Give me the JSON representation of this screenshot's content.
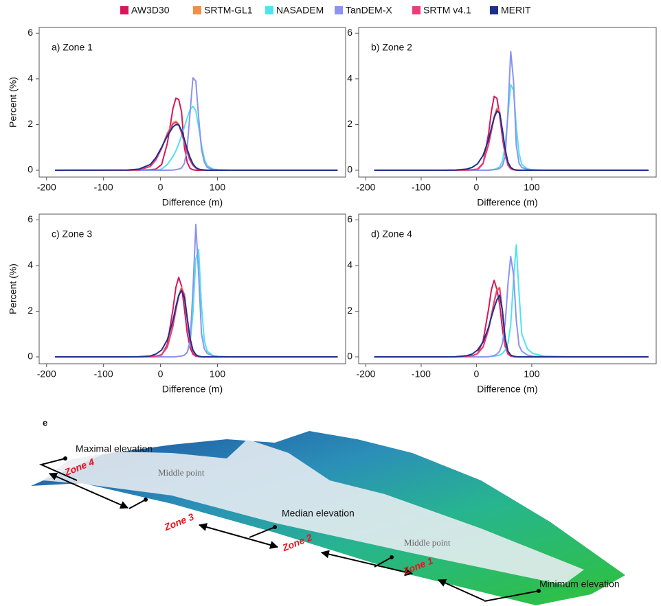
{
  "chart_data": [
    {
      "type": "line",
      "title": "a) Zone 1",
      "x_label": "Difference (m)",
      "y_label": "Percent (%)",
      "xlim": [
        -213,
        325
      ],
      "ylim": [
        -0.3,
        6.25
      ],
      "xticks": [
        -200,
        -100,
        0,
        100
      ],
      "yticks": [
        0,
        2,
        4,
        6
      ],
      "x": [
        -185,
        -58,
        -38,
        -18,
        -8,
        2,
        12,
        22,
        27,
        32,
        37,
        42,
        47,
        52,
        57,
        62,
        67,
        72,
        77,
        82,
        92,
        102,
        122,
        162,
        311
      ],
      "series": [
        {
          "name": "AW3D30",
          "color": "#d6175c",
          "values": [
            0,
            0,
            0.01,
            0.02,
            0.05,
            0.25,
            1.17,
            2.71,
            3.15,
            3.1,
            2.56,
            1.0,
            0.34,
            0.08,
            0.02,
            0,
            0,
            0,
            0,
            0,
            0,
            0,
            0,
            0,
            0
          ]
        },
        {
          "name": "SRTM-GL1",
          "color": "#f0904a",
          "values": [
            0,
            0,
            0.01,
            0.17,
            0.47,
            0.98,
            1.62,
            2.08,
            2.15,
            2.02,
            1.66,
            1.21,
            0.78,
            0.43,
            0.22,
            0.1,
            0.04,
            0.02,
            0.01,
            0,
            0,
            0,
            0,
            0,
            0
          ]
        },
        {
          "name": "NASADEM",
          "color": "#4fe3ee",
          "values": [
            0,
            0,
            0,
            0,
            0,
            0.05,
            0.25,
            0.6,
            0.85,
            1.15,
            1.5,
            1.9,
            2.3,
            2.65,
            2.8,
            2.6,
            1.9,
            1.1,
            0.5,
            0.2,
            0.05,
            0.02,
            0,
            0,
            0
          ]
        },
        {
          "name": "TanDEM-X",
          "color": "#8a93f0",
          "values": [
            0,
            0,
            0,
            0,
            0,
            0,
            0,
            0.01,
            0.02,
            0.05,
            0.1,
            0.3,
            1.0,
            2.55,
            4.05,
            3.9,
            2.3,
            0.9,
            0.35,
            0.12,
            0.03,
            0.01,
            0,
            0,
            0
          ]
        },
        {
          "name": "SRTM v4.1",
          "color": "#ea3e77",
          "values": [
            0,
            0,
            0.01,
            0.16,
            0.45,
            0.95,
            1.58,
            2.03,
            2.1,
            1.98,
            1.63,
            1.19,
            0.77,
            0.42,
            0.21,
            0.1,
            0.04,
            0.02,
            0.01,
            0,
            0,
            0,
            0,
            0,
            0
          ]
        },
        {
          "name": "MERIT",
          "color": "#1c2f8c",
          "values": [
            0,
            0.01,
            0.05,
            0.25,
            0.55,
            1.0,
            1.5,
            1.9,
            2.0,
            1.98,
            1.75,
            1.35,
            0.92,
            0.55,
            0.28,
            0.12,
            0.05,
            0.02,
            0.01,
            0,
            0,
            0,
            0,
            0,
            0
          ]
        }
      ]
    },
    {
      "type": "line",
      "title": "b) Zone 2",
      "x_label": "Difference (m)",
      "xlim": [
        -213,
        325
      ],
      "ylim": [
        -0.3,
        6.25
      ],
      "xticks": [
        -200,
        -100,
        0,
        100
      ],
      "yticks": [
        0,
        2,
        4,
        6
      ],
      "x": [
        -185,
        -58,
        -38,
        -18,
        -8,
        2,
        12,
        22,
        27,
        32,
        37,
        42,
        47,
        52,
        57,
        62,
        67,
        72,
        77,
        82,
        92,
        102,
        122,
        162,
        311
      ],
      "series": [
        {
          "color": "#d6175c",
          "values": [
            0,
            0,
            0,
            0,
            0.01,
            0.02,
            0.29,
            1.61,
            2.58,
            3.23,
            3.15,
            2.4,
            1.42,
            0.65,
            0.23,
            0.07,
            0.02,
            0,
            0,
            0,
            0,
            0,
            0,
            0,
            0
          ]
        },
        {
          "color": "#f0904a",
          "values": [
            0,
            0,
            0,
            0.01,
            0.02,
            0.05,
            0.32,
            1.17,
            1.79,
            2.37,
            2.71,
            2.57,
            1.67,
            0.74,
            0.22,
            0.06,
            0.02,
            0,
            0,
            0,
            0,
            0,
            0,
            0,
            0
          ]
        },
        {
          "color": "#4fe3ee",
          "values": [
            0,
            0,
            0,
            0,
            0,
            0,
            0,
            0.01,
            0.02,
            0.04,
            0.08,
            0.15,
            0.4,
            1.1,
            2.4,
            3.75,
            3.5,
            1.9,
            0.75,
            0.25,
            0.06,
            0.02,
            0,
            0,
            0
          ]
        },
        {
          "color": "#8a93f0",
          "values": [
            0,
            0,
            0,
            0,
            0,
            0,
            0,
            0,
            0.01,
            0.02,
            0.04,
            0.08,
            0.2,
            0.6,
            2.6,
            5.2,
            3.9,
            1.1,
            0.3,
            0.12,
            0.04,
            0.01,
            0,
            0,
            0
          ]
        },
        {
          "color": "#ea3e77",
          "values": [
            0,
            0,
            0,
            0.01,
            0.02,
            0.05,
            0.3,
            1.12,
            1.72,
            2.3,
            2.65,
            2.52,
            1.64,
            0.72,
            0.21,
            0.06,
            0.02,
            0,
            0,
            0,
            0,
            0,
            0,
            0,
            0
          ]
        },
        {
          "color": "#1c2f8c",
          "values": [
            0,
            0,
            0.01,
            0.05,
            0.12,
            0.28,
            0.65,
            1.35,
            1.85,
            2.3,
            2.58,
            2.5,
            1.75,
            0.9,
            0.35,
            0.12,
            0.04,
            0.01,
            0,
            0,
            0,
            0,
            0,
            0,
            0
          ]
        }
      ]
    },
    {
      "type": "line",
      "title": "c) Zone 3",
      "x_label": "Difference (m)",
      "y_label": "Percent (%)",
      "xlim": [
        -213,
        325
      ],
      "ylim": [
        -0.3,
        6.25
      ],
      "xticks": [
        -200,
        -100,
        0,
        100
      ],
      "yticks": [
        0,
        2,
        4,
        6
      ],
      "x": [
        -185,
        -58,
        -38,
        -18,
        -8,
        2,
        12,
        22,
        27,
        32,
        37,
        42,
        47,
        52,
        57,
        62,
        67,
        72,
        77,
        82,
        92,
        102,
        122,
        162,
        311
      ],
      "series": [
        {
          "color": "#d6175c",
          "values": [
            0,
            0,
            0,
            0.01,
            0.02,
            0.08,
            0.55,
            2.1,
            3.05,
            3.48,
            3.1,
            2.1,
            1.05,
            0.4,
            0.12,
            0.03,
            0.01,
            0,
            0,
            0,
            0,
            0,
            0,
            0,
            0
          ]
        },
        {
          "color": "#f0904a",
          "values": [
            0,
            0,
            0,
            0.01,
            0.03,
            0.1,
            0.45,
            1.4,
            2.1,
            2.7,
            3.05,
            2.75,
            1.7,
            0.7,
            0.2,
            0.05,
            0.02,
            0,
            0,
            0,
            0,
            0,
            0,
            0,
            0
          ]
        },
        {
          "color": "#4fe3ee",
          "values": [
            0,
            0,
            0,
            0,
            0,
            0,
            0,
            0,
            0.01,
            0.02,
            0.04,
            0.08,
            0.2,
            0.6,
            1.9,
            4.3,
            4.7,
            2.2,
            0.7,
            0.25,
            0.06,
            0.02,
            0,
            0,
            0
          ]
        },
        {
          "color": "#8a93f0",
          "values": [
            0,
            0,
            0,
            0,
            0,
            0,
            0,
            0,
            0.01,
            0.02,
            0.04,
            0.08,
            0.2,
            0.7,
            2.9,
            5.8,
            3.6,
            1.0,
            0.35,
            0.15,
            0.05,
            0.01,
            0,
            0,
            0
          ]
        },
        {
          "color": "#ea3e77",
          "values": [
            0,
            0,
            0,
            0.01,
            0.03,
            0.09,
            0.42,
            1.35,
            2.05,
            2.65,
            3.0,
            2.7,
            1.66,
            0.68,
            0.19,
            0.05,
            0.02,
            0,
            0,
            0,
            0,
            0,
            0,
            0,
            0
          ]
        },
        {
          "color": "#1c2f8c",
          "values": [
            0,
            0,
            0.01,
            0.04,
            0.12,
            0.3,
            0.75,
            1.6,
            2.2,
            2.7,
            2.9,
            2.6,
            1.7,
            0.8,
            0.3,
            0.1,
            0.03,
            0.01,
            0,
            0,
            0,
            0,
            0,
            0,
            0
          ]
        }
      ]
    },
    {
      "type": "line",
      "title": "d) Zone 4",
      "x_label": "Difference (m)",
      "xlim": [
        -213,
        325
      ],
      "ylim": [
        -0.3,
        6.25
      ],
      "xticks": [
        -200,
        -100,
        0,
        100
      ],
      "yticks": [
        0,
        2,
        4,
        6
      ],
      "x": [
        -185,
        -58,
        -38,
        -18,
        -8,
        2,
        12,
        22,
        27,
        32,
        37,
        42,
        47,
        52,
        57,
        62,
        67,
        72,
        77,
        82,
        92,
        102,
        122,
        162,
        311
      ],
      "series": [
        {
          "color": "#d6175c",
          "values": [
            0,
            0,
            0,
            0.01,
            0.03,
            0.15,
            0.7,
            2.1,
            2.95,
            3.35,
            2.95,
            2.3,
            1.2,
            0.45,
            0.12,
            0.03,
            0.01,
            0,
            0,
            0,
            0,
            0,
            0,
            0,
            0
          ]
        },
        {
          "color": "#f0904a",
          "values": [
            0,
            0,
            0,
            0.02,
            0.05,
            0.15,
            0.45,
            1.25,
            1.85,
            2.45,
            2.95,
            3.05,
            2.0,
            0.6,
            0.15,
            0.05,
            0.02,
            0,
            0,
            0,
            0,
            0,
            0,
            0,
            0
          ]
        },
        {
          "color": "#4fe3ee",
          "values": [
            0,
            0,
            0,
            0,
            0,
            0,
            0,
            0.01,
            0.02,
            0.03,
            0.05,
            0.08,
            0.15,
            0.3,
            0.6,
            1.4,
            3.4,
            4.9,
            2.8,
            1.0,
            0.35,
            0.15,
            0.04,
            0.01,
            0
          ]
        },
        {
          "color": "#8a93f0",
          "values": [
            0,
            0,
            0,
            0,
            0,
            0,
            0,
            0.01,
            0.03,
            0.06,
            0.12,
            0.25,
            0.6,
            1.5,
            3.2,
            4.4,
            3.6,
            1.6,
            0.5,
            0.25,
            0.08,
            0.03,
            0.01,
            0,
            0
          ]
        },
        {
          "color": "#ea3e77",
          "values": [
            0,
            0,
            0,
            0.02,
            0.05,
            0.14,
            0.43,
            1.2,
            1.8,
            2.4,
            2.9,
            3.0,
            1.95,
            0.58,
            0.15,
            0.05,
            0.02,
            0,
            0,
            0,
            0,
            0,
            0,
            0,
            0
          ]
        },
        {
          "color": "#1c2f8c",
          "values": [
            0,
            0,
            0.01,
            0.05,
            0.12,
            0.3,
            0.65,
            1.3,
            1.75,
            2.15,
            2.5,
            2.7,
            2.0,
            0.8,
            0.25,
            0.08,
            0.03,
            0.01,
            0,
            0,
            0,
            0,
            0,
            0,
            0
          ]
        }
      ]
    }
  ],
  "figure_e": {
    "label": "e",
    "annotations": [
      "Maximal elevation",
      "Zone 4",
      "Middle point",
      "Zone 3",
      "Median elevation",
      "Zone 2",
      "Middle point",
      "Zone 1",
      "Minimum elevation"
    ]
  }
}
